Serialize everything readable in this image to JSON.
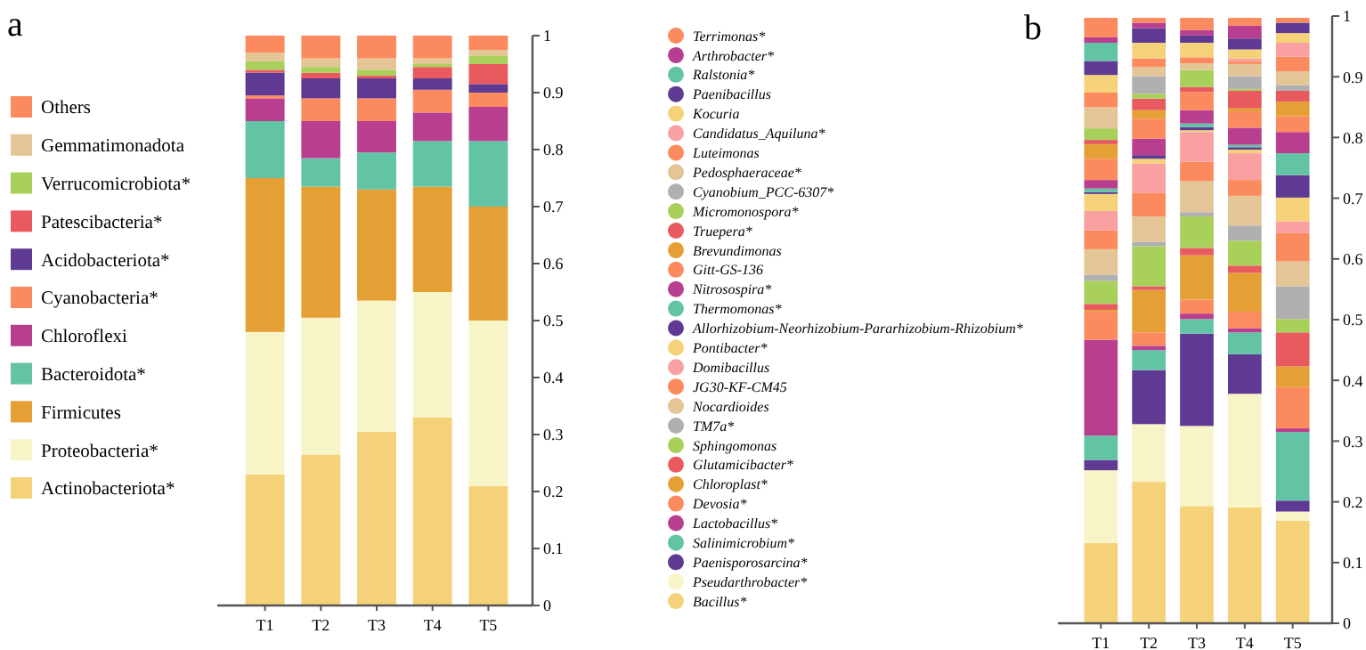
{
  "chart_data": [
    {
      "type": "bar",
      "title": "a",
      "stacked": true,
      "legend": "left",
      "categories": [
        "T1",
        "T2",
        "T3",
        "T4",
        "T5"
      ],
      "ylim": [
        0,
        1
      ],
      "yticks": [
        0,
        0.1,
        0.2,
        0.3,
        0.4,
        0.5,
        0.6,
        0.7,
        0.8,
        0.9,
        1
      ],
      "series": [
        {
          "name": "Actinobacteriota*",
          "color": "#f5d27a",
          "values": [
            0.23,
            0.265,
            0.305,
            0.33,
            0.21
          ]
        },
        {
          "name": "Proteobacteria*",
          "color": "#f7f5c8",
          "values": [
            0.25,
            0.24,
            0.23,
            0.22,
            0.29
          ]
        },
        {
          "name": "Firmicutes",
          "color": "#e5a035",
          "values": [
            0.27,
            0.23,
            0.195,
            0.185,
            0.2
          ]
        },
        {
          "name": "Bacteroidota*",
          "color": "#63c3a5",
          "values": [
            0.1,
            0.05,
            0.065,
            0.08,
            0.115
          ]
        },
        {
          "name": "Chloroflexi",
          "color": "#b83f90",
          "values": [
            0.04,
            0.065,
            0.055,
            0.05,
            0.06
          ]
        },
        {
          "name": "Cyanobacteria*",
          "color": "#fb8b5e",
          "values": [
            0.005,
            0.04,
            0.04,
            0.04,
            0.025
          ]
        },
        {
          "name": "Acidobacteriota*",
          "color": "#5e3a92",
          "values": [
            0.04,
            0.035,
            0.035,
            0.02,
            0.015
          ]
        },
        {
          "name": "Patescibacteria*",
          "color": "#e85a5e",
          "values": [
            0.005,
            0.01,
            0.005,
            0.02,
            0.035
          ]
        },
        {
          "name": "Verrucomicrobiota*",
          "color": "#a8d05a",
          "values": [
            0.015,
            0.01,
            0.01,
            0.005,
            0.015
          ]
        },
        {
          "name": "Gemmatimonadota",
          "color": "#e3c596",
          "values": [
            0.015,
            0.015,
            0.02,
            0.01,
            0.01
          ]
        },
        {
          "name": "Others",
          "color": "#fb8b5e",
          "values": [
            0.03,
            0.04,
            0.04,
            0.04,
            0.025
          ]
        }
      ]
    },
    {
      "type": "bar",
      "title": "b",
      "stacked": true,
      "legend": "left",
      "categories": [
        "T1",
        "T2",
        "T3",
        "T4",
        "T5"
      ],
      "ylim": [
        0,
        1
      ],
      "yticks": [
        0,
        0.1,
        0.2,
        0.3,
        0.4,
        0.5,
        0.6,
        0.7,
        0.8,
        0.9,
        1
      ],
      "series": [
        {
          "name": "Bacillus*",
          "color": "#f5d27a",
          "values": [
            0.132,
            0.233,
            0.193,
            0.191,
            0.169
          ]
        },
        {
          "name": "Pseudarthrobacter*",
          "color": "#f7f5c8",
          "values": [
            0.12,
            0.095,
            0.132,
            0.187,
            0.015
          ]
        },
        {
          "name": "Paenisporosarcina*",
          "color": "#5e3a92",
          "values": [
            0.017,
            0.089,
            0.152,
            0.065,
            0.018
          ]
        },
        {
          "name": "Salinimicrobium*",
          "color": "#63c3a5",
          "values": [
            0.04,
            0.033,
            0.024,
            0.036,
            0.113
          ]
        },
        {
          "name": "Lactobacillus*",
          "color": "#b83f90",
          "values": [
            0.158,
            0.007,
            0.009,
            0.007,
            0.006
          ]
        },
        {
          "name": "Devosia*",
          "color": "#fb8b5e",
          "values": [
            0.046,
            0.022,
            0.023,
            0.027,
            0.068
          ]
        },
        {
          "name": "Chloroplast*",
          "color": "#e5a035",
          "values": [
            0.003,
            0.07,
            0.073,
            0.064,
            0.034
          ]
        },
        {
          "name": "Glutamicibacter*",
          "color": "#e85a5e",
          "values": [
            0.01,
            0.006,
            0.012,
            0.012,
            0.056
          ]
        },
        {
          "name": "Sphingomonas",
          "color": "#a8d05a",
          "values": [
            0.038,
            0.066,
            0.052,
            0.041,
            0.022
          ]
        },
        {
          "name": "TM7a*",
          "color": "#b0b0b0",
          "values": [
            0.01,
            0.007,
            0.007,
            0.025,
            0.054
          ]
        },
        {
          "name": "Nocardioides",
          "color": "#e3c596",
          "values": [
            0.042,
            0.042,
            0.051,
            0.049,
            0.041
          ]
        },
        {
          "name": "JG30-KF-CM45",
          "color": "#fb8b5e",
          "values": [
            0.031,
            0.039,
            0.032,
            0.026,
            0.047
          ]
        },
        {
          "name": "Domibacillus",
          "color": "#f9a0a0",
          "values": [
            0.032,
            0.048,
            0.049,
            0.044,
            0.019
          ]
        },
        {
          "name": "Pontibacter*",
          "color": "#f5d27a",
          "values": [
            0.028,
            0.008,
            0.003,
            0.006,
            0.039
          ]
        },
        {
          "name": "Allorhizobium-Neorhizobium-Pararhizobium-Rhizobium*",
          "color": "#5e3a92",
          "values": [
            0.003,
            0.006,
            0.005,
            0.004,
            0.037
          ]
        },
        {
          "name": "Thermomonas*",
          "color": "#63c3a5",
          "values": [
            0.006,
            0,
            0.006,
            0.004,
            0.036
          ]
        },
        {
          "name": "Nitrosospira*",
          "color": "#b83f90",
          "values": [
            0.014,
            0.027,
            0.022,
            0.028,
            0.035
          ]
        },
        {
          "name": "Gitt-GS-136",
          "color": "#fb8b5e",
          "values": [
            0.035,
            0.033,
            0.03,
            0.027,
            0.026
          ]
        },
        {
          "name": "Brevundimonas",
          "color": "#e5a035",
          "values": [
            0.024,
            0.014,
            0,
            0.005,
            0.024
          ]
        },
        {
          "name": "Truepera*",
          "color": "#e85a5e",
          "values": [
            0.007,
            0.019,
            0.008,
            0.029,
            0.018
          ]
        },
        {
          "name": "Micromonospora*",
          "color": "#a8d05a",
          "values": [
            0.019,
            0.008,
            0.028,
            0.003,
            0
          ]
        },
        {
          "name": "Cyanobium_PCC-6307*",
          "color": "#b0b0b0",
          "values": [
            0,
            0.029,
            0,
            0.021,
            0.009
          ]
        },
        {
          "name": "Pedosphaeraceae*",
          "color": "#e3c596",
          "values": [
            0.035,
            0.015,
            0.011,
            0.02,
            0.023
          ]
        },
        {
          "name": "Luteimonas",
          "color": "#fb8b5e",
          "values": [
            0.024,
            0.014,
            0.01,
            0.004,
            0.024
          ]
        },
        {
          "name": "Candidatus_Aquiluna*",
          "color": "#f9a0a0",
          "values": [
            0,
            0,
            0,
            0.005,
            0.023
          ]
        },
        {
          "name": "Kocuria",
          "color": "#f5d27a",
          "values": [
            0.029,
            0.026,
            0.024,
            0.015,
            0.016
          ]
        },
        {
          "name": "Paenibacillus",
          "color": "#5e3a92",
          "values": [
            0.023,
            0.024,
            0.012,
            0.018,
            0.017
          ]
        },
        {
          "name": "Ralstonia*",
          "color": "#63c3a5",
          "values": [
            0.03,
            0,
            0,
            0,
            0
          ]
        },
        {
          "name": "Arthrobacter*",
          "color": "#b83f90",
          "values": [
            0.009,
            0.009,
            0.009,
            0.021,
            0
          ]
        },
        {
          "name": "Terrimonas*",
          "color": "#fb8b5e",
          "values": [
            0.032,
            0.008,
            0.02,
            0.013,
            0.008
          ]
        }
      ]
    }
  ]
}
